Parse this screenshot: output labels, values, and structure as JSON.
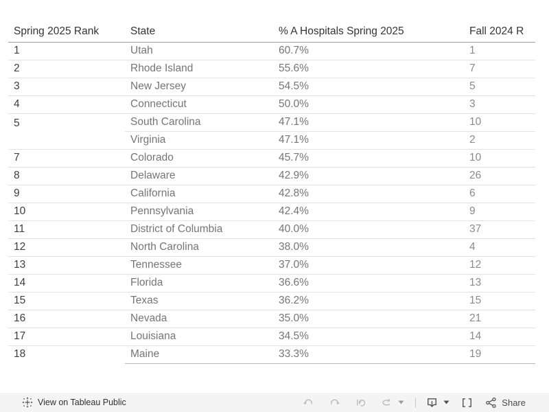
{
  "table": {
    "columns": [
      {
        "label": "Spring 2025 Rank"
      },
      {
        "label": "State"
      },
      {
        "label": "% A Hospitals Spring 2025"
      },
      {
        "label": "Fall 2024 R"
      }
    ],
    "rows": [
      {
        "rank": "1",
        "state": "Utah",
        "pct": "60.7%",
        "fall": "1"
      },
      {
        "rank": "2",
        "state": "Rhode Island",
        "pct": "55.6%",
        "fall": "7"
      },
      {
        "rank": "3",
        "state": "New Jersey",
        "pct": "54.5%",
        "fall": "5"
      },
      {
        "rank": "4",
        "state": "Connecticut",
        "pct": "50.0%",
        "fall": "3"
      },
      {
        "rank": "5",
        "state": "South Carolina",
        "pct": "47.1%",
        "fall": "10"
      },
      {
        "rank": "",
        "state": "Virginia",
        "pct": "47.1%",
        "fall": "2"
      },
      {
        "rank": "7",
        "state": "Colorado",
        "pct": "45.7%",
        "fall": "10"
      },
      {
        "rank": "8",
        "state": "Delaware",
        "pct": "42.9%",
        "fall": "26"
      },
      {
        "rank": "9",
        "state": "California",
        "pct": "42.8%",
        "fall": "6"
      },
      {
        "rank": "10",
        "state": "Pennsylvania",
        "pct": "42.4%",
        "fall": "9"
      },
      {
        "rank": "11",
        "state": "District of Columbia",
        "pct": "40.0%",
        "fall": "37"
      },
      {
        "rank": "12",
        "state": "North Carolina",
        "pct": "38.0%",
        "fall": "4"
      },
      {
        "rank": "13",
        "state": "Tennessee",
        "pct": "37.0%",
        "fall": "12"
      },
      {
        "rank": "14",
        "state": "Florida",
        "pct": "36.6%",
        "fall": "13"
      },
      {
        "rank": "15",
        "state": "Texas",
        "pct": "36.2%",
        "fall": "15"
      },
      {
        "rank": "16",
        "state": "Nevada",
        "pct": "35.0%",
        "fall": "21"
      },
      {
        "rank": "17",
        "state": "Louisiana",
        "pct": "34.5%",
        "fall": "14"
      },
      {
        "rank": "18",
        "state": "Maine",
        "pct": "33.3%",
        "fall": "19"
      }
    ]
  },
  "toolbar": {
    "view_label": "View on Tableau Public",
    "share_label": "Share",
    "icon_names": [
      "tableau-logo",
      "undo",
      "redo",
      "replay",
      "refresh",
      "refresh-dropdown-caret",
      "download",
      "download-dropdown-caret",
      "fullscreen",
      "share"
    ]
  },
  "colors": {
    "header_text": "#333333",
    "rank_text": "#3d3d3d",
    "body_text": "#757575",
    "fall_text": "#8a8a8a",
    "row_divider": "#e3e3e3",
    "header_rule": "#9e9e9e",
    "pane_bottom_rule": "#b7b7b7",
    "toolbar_bg": "#f4f4f4",
    "icon_disabled": "#b9b9b9",
    "icon_enabled": "#4f4f4f"
  }
}
